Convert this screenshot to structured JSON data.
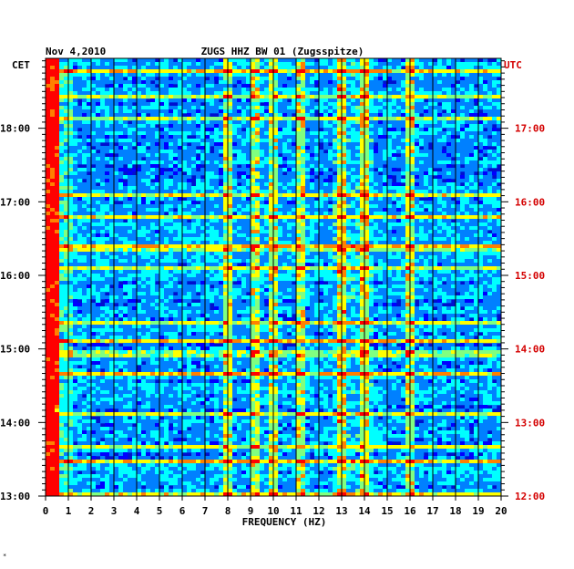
{
  "chart_data": {
    "type": "heatmap",
    "title": "ZUGS HHZ BW 01 (Zugsspitze)",
    "date": "Nov 4,2010",
    "xlabel": "FREQUENCY (HZ)",
    "x_ticks": [
      "0",
      "1",
      "2",
      "3",
      "4",
      "5",
      "6",
      "7",
      "8",
      "9",
      "10",
      "11",
      "12",
      "13",
      "14",
      "15",
      "16",
      "17",
      "18",
      "19",
      "20"
    ],
    "xlim": [
      0,
      20
    ],
    "left_axis": {
      "name": "CET",
      "ticks": [
        {
          "label": "13:00",
          "hours": 13
        },
        {
          "label": "14:00",
          "hours": 14
        },
        {
          "label": "15:00",
          "hours": 15
        },
        {
          "label": "16:00",
          "hours": 16
        },
        {
          "label": "17:00",
          "hours": 17
        },
        {
          "label": "18:00",
          "hours": 18
        }
      ],
      "range_hours": [
        13,
        18.95
      ]
    },
    "right_axis": {
      "name": "UTC",
      "ticks": [
        "12:00",
        "13:00",
        "14:00",
        "15:00",
        "16:00",
        "17:00"
      ]
    },
    "colormap": [
      "#00007f",
      "#0000ff",
      "#0080ff",
      "#00ffff",
      "#80ff80",
      "#ffff00",
      "#ff8000",
      "#ff0000"
    ],
    "notable_bands_hz": [
      0.3,
      8.0,
      9.2,
      10.1,
      11.2,
      13.0,
      14.0,
      16.0
    ],
    "footnote": "*"
  }
}
